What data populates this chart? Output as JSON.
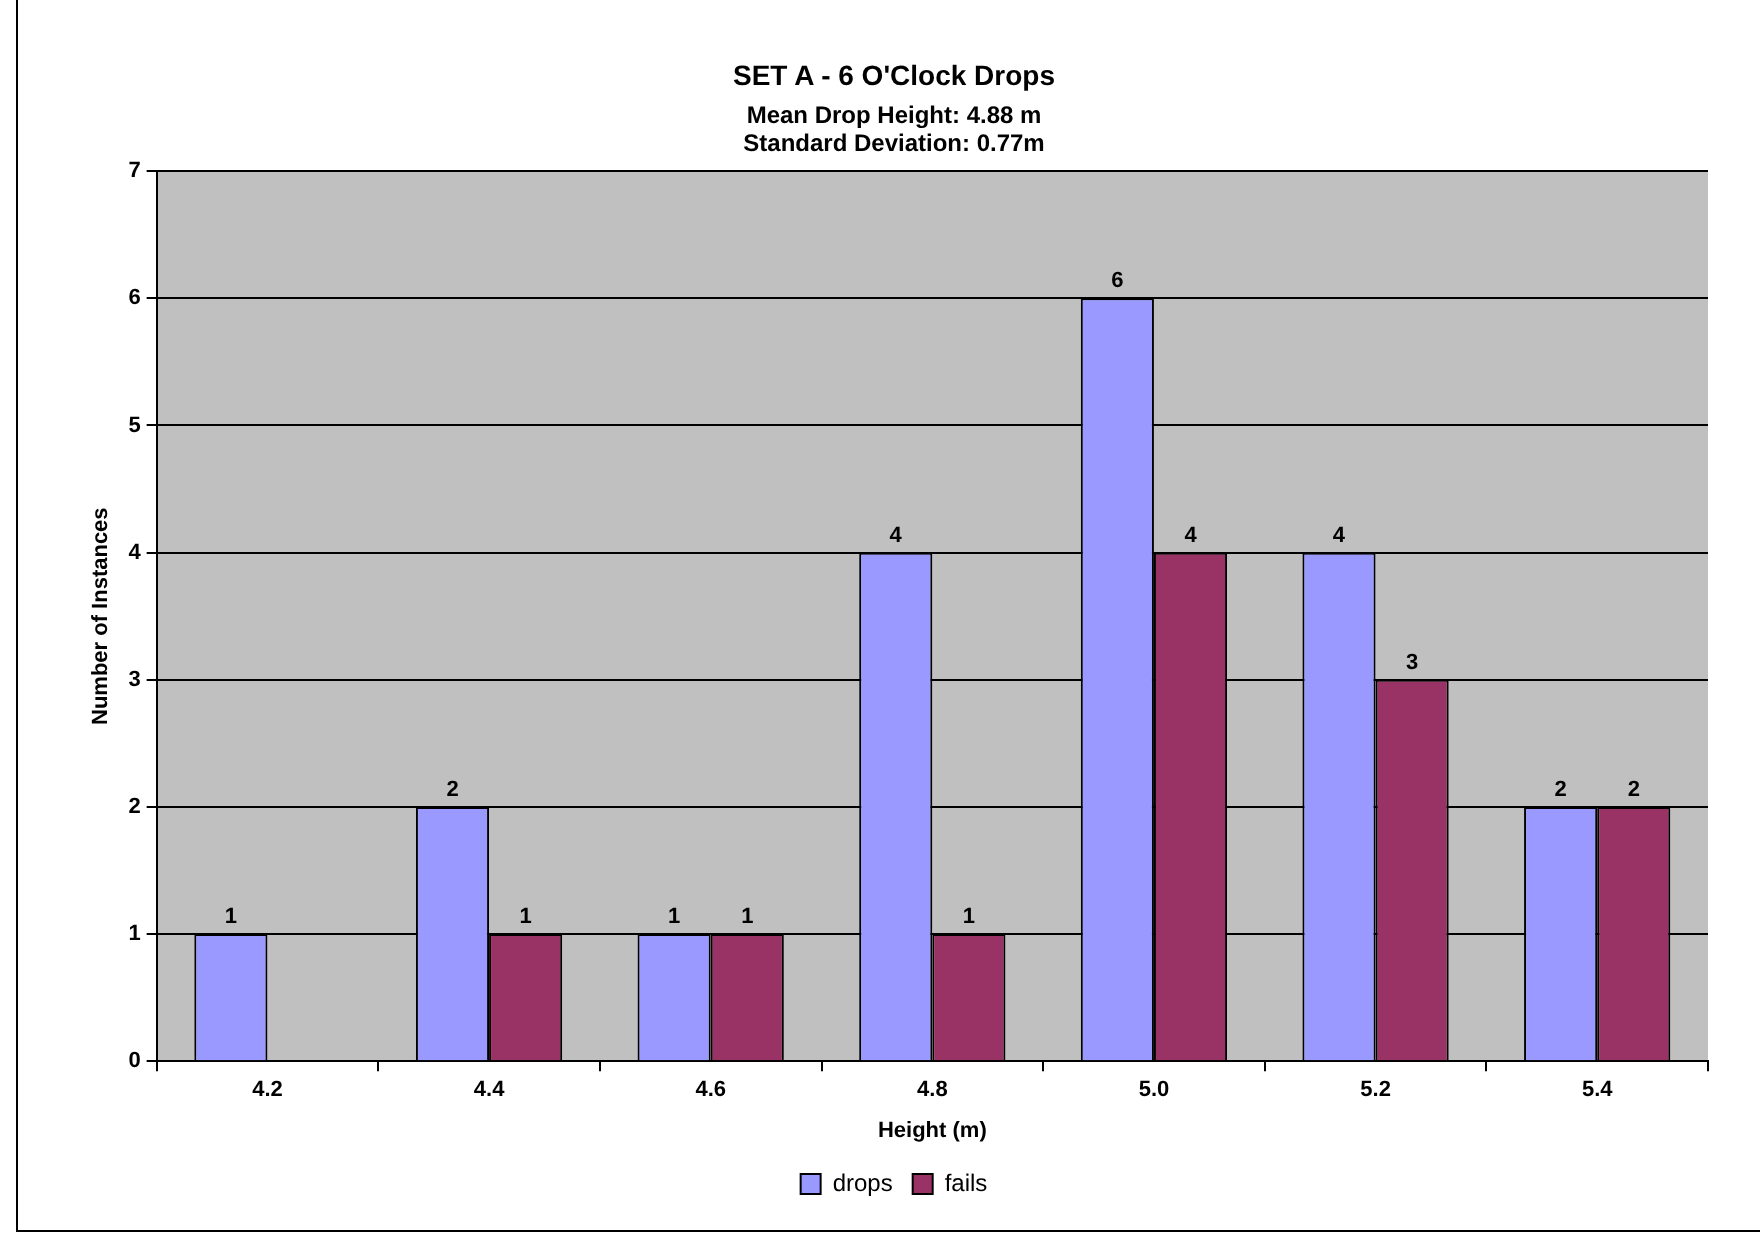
{
  "chart_data": {
    "type": "bar",
    "title": "SET A - 6 O'Clock Drops",
    "subtitle": "Mean Drop Height: 4.88 m\nStandard Deviation: 0.77m",
    "xlabel": "Height (m)",
    "ylabel": "Number of Instances",
    "categories": [
      "4.2",
      "4.4",
      "4.6",
      "4.8",
      "5.0",
      "5.2",
      "5.4"
    ],
    "series": [
      {
        "name": "drops",
        "color": "#9999ff",
        "values": [
          1,
          2,
          1,
          4,
          6,
          4,
          2
        ]
      },
      {
        "name": "fails",
        "color": "#993366",
        "values": [
          null,
          1,
          1,
          1,
          4,
          3,
          2
        ]
      }
    ],
    "ylim": [
      0,
      7
    ],
    "yticks": [
      0,
      1,
      2,
      3,
      4,
      5,
      6,
      7
    ],
    "grid": "y",
    "legend": "bottom",
    "data_labels": true
  }
}
